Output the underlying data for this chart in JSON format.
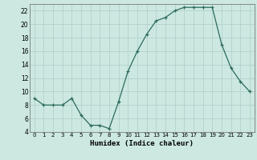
{
  "x": [
    0,
    1,
    2,
    3,
    4,
    5,
    6,
    7,
    8,
    9,
    10,
    11,
    12,
    13,
    14,
    15,
    16,
    17,
    18,
    19,
    20,
    21,
    22,
    23
  ],
  "y": [
    9,
    8,
    8,
    8,
    9,
    6.5,
    5,
    5,
    4.5,
    8.5,
    13,
    16,
    18.5,
    20.5,
    21,
    22,
    22.5,
    22.5,
    22.5,
    22.5,
    17,
    13.5,
    11.5,
    10
  ],
  "xlabel": "Humidex (Indice chaleur)",
  "ylim": [
    4,
    23
  ],
  "xlim": [
    -0.5,
    23.5
  ],
  "yticks": [
    4,
    6,
    8,
    10,
    12,
    14,
    16,
    18,
    20,
    22
  ],
  "xticks": [
    0,
    1,
    2,
    3,
    4,
    5,
    6,
    7,
    8,
    9,
    10,
    11,
    12,
    13,
    14,
    15,
    16,
    17,
    18,
    19,
    20,
    21,
    22,
    23
  ],
  "line_color": "#2d6b5e",
  "marker": "+",
  "bg_color": "#cce8e0",
  "grid_color": "#b0cccc",
  "spine_color": "#666666"
}
